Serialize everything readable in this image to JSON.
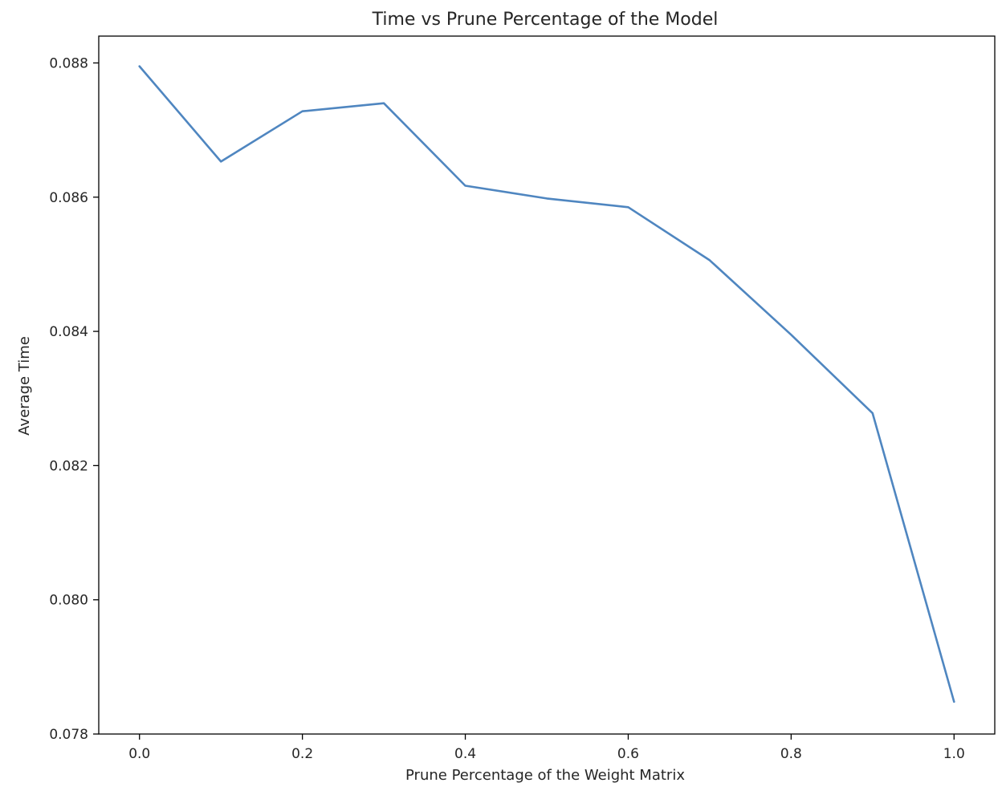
{
  "chart_data": {
    "type": "line",
    "title": "Time vs Prune Percentage of the Model",
    "xlabel": "Prune Percentage of the Weight Matrix",
    "ylabel": "Average Time",
    "xlim": [
      -0.05,
      1.05
    ],
    "ylim": [
      0.078,
      0.0884
    ],
    "x_ticks": [
      0.0,
      0.2,
      0.4,
      0.6,
      0.8,
      1.0
    ],
    "x_tick_labels": [
      "0.0",
      "0.2",
      "0.4",
      "0.6",
      "0.8",
      "1.0"
    ],
    "y_ticks": [
      0.078,
      0.08,
      0.082,
      0.084,
      0.086,
      0.088
    ],
    "y_tick_labels": [
      "0.078",
      "0.080",
      "0.082",
      "0.084",
      "0.086",
      "0.088"
    ],
    "grid": false,
    "series": [
      {
        "color": "#4f86c0",
        "x": [
          0.0,
          0.1,
          0.2,
          0.3,
          0.4,
          0.5,
          0.6,
          0.7,
          0.8,
          0.9,
          1.0
        ],
        "y": [
          0.08795,
          0.08653,
          0.08728,
          0.0874,
          0.08617,
          0.08598,
          0.08585,
          0.08506,
          0.08395,
          0.08278,
          0.07848
        ]
      }
    ]
  }
}
